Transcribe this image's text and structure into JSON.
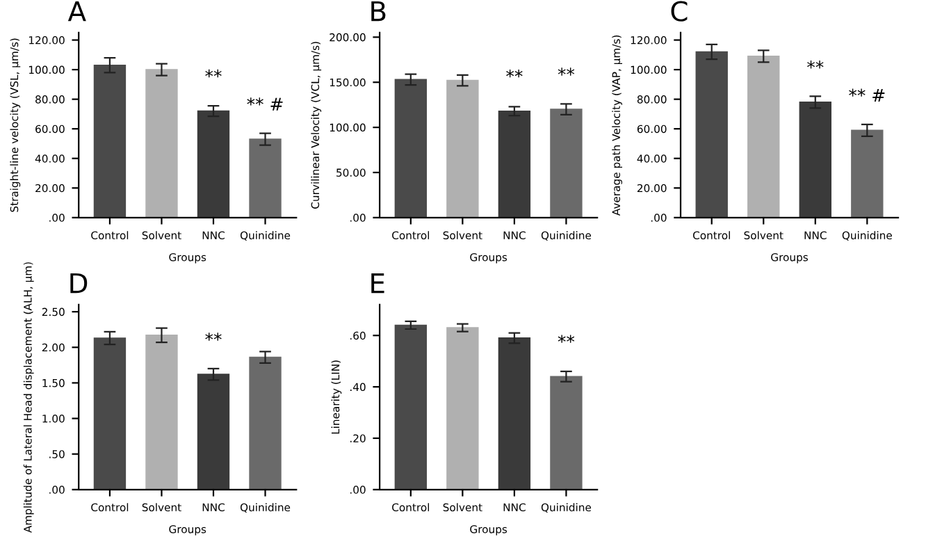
{
  "chart_data": [
    {
      "type": "bar",
      "title": "A",
      "xlabel": "Groups",
      "ylabel": "Straight-line velocity (VSL, µm/s)",
      "categories": [
        "Control",
        "Solvent",
        "NNC",
        "Quinidine"
      ],
      "values": [
        103,
        100,
        72,
        53
      ],
      "errors": [
        5,
        4,
        3.5,
        4
      ],
      "colors": [
        "#4a4a4a",
        "#b0b0b0",
        "#3a3a3a",
        "#6a6a6a"
      ],
      "ylim": [
        0,
        125
      ],
      "yticks": [
        {
          "value": 0,
          "label": ".00"
        },
        {
          "value": 20,
          "label": "20.00"
        },
        {
          "value": 40,
          "label": "40.00"
        },
        {
          "value": 60,
          "label": "60.00"
        },
        {
          "value": 80,
          "label": "80.00"
        },
        {
          "value": 100,
          "label": "100.00"
        },
        {
          "value": 120,
          "label": "120.00"
        }
      ],
      "annotations": [
        {
          "text": "**",
          "x": "NNC",
          "y": 72
        },
        {
          "text": "** #",
          "x": "Quinidine",
          "y": 53
        }
      ]
    },
    {
      "type": "bar",
      "title": "B",
      "xlabel": "Groups",
      "ylabel": "Curvilinear Velocity (VCL, µm/s)",
      "categories": [
        "Control",
        "Solvent",
        "NNC",
        "Quinidine"
      ],
      "values": [
        153,
        152,
        118,
        120
      ],
      "errors": [
        6,
        6,
        5,
        6
      ],
      "colors": [
        "#4a4a4a",
        "#b0b0b0",
        "#3a3a3a",
        "#6a6a6a"
      ],
      "ylim": [
        0,
        205
      ],
      "yticks": [
        {
          "value": 0,
          "label": ".00"
        },
        {
          "value": 50,
          "label": "50.00"
        },
        {
          "value": 100,
          "label": "100.00"
        },
        {
          "value": 150,
          "label": "150.00"
        },
        {
          "value": 200,
          "label": "200.00"
        }
      ],
      "annotations": [
        {
          "text": "**",
          "x": "NNC",
          "y": 118
        },
        {
          "text": "**",
          "x": "Quinidine",
          "y": 120
        }
      ]
    },
    {
      "type": "bar",
      "title": "C",
      "xlabel": "Groups",
      "ylabel": "Average path Velocity (VAP, µm/s)",
      "categories": [
        "Control",
        "Solvent",
        "NNC",
        "Quinidine"
      ],
      "values": [
        112,
        109,
        78,
        59
      ],
      "errors": [
        5,
        4,
        4,
        4
      ],
      "colors": [
        "#4a4a4a",
        "#b0b0b0",
        "#3a3a3a",
        "#6a6a6a"
      ],
      "ylim": [
        0,
        125
      ],
      "yticks": [
        {
          "value": 0,
          "label": ".00"
        },
        {
          "value": 20,
          "label": "20.00"
        },
        {
          "value": 40,
          "label": "40.00"
        },
        {
          "value": 60,
          "label": "60.00"
        },
        {
          "value": 80,
          "label": "80.00"
        },
        {
          "value": 100,
          "label": "100.00"
        },
        {
          "value": 120,
          "label": "120.00"
        }
      ],
      "annotations": [
        {
          "text": "**",
          "x": "NNC",
          "y": 78
        },
        {
          "text": "** #",
          "x": "Quinidine",
          "y": 59
        }
      ]
    },
    {
      "type": "bar",
      "title": "D",
      "xlabel": "Groups",
      "ylabel": "Amplitude of Lateral Head displacement (ALH, µm)",
      "categories": [
        "Control",
        "Solvent",
        "NNC",
        "Quinidine"
      ],
      "values": [
        2.13,
        2.17,
        1.62,
        1.86
      ],
      "errors": [
        0.09,
        0.1,
        0.08,
        0.08
      ],
      "colors": [
        "#4a4a4a",
        "#b0b0b0",
        "#3a3a3a",
        "#6a6a6a"
      ],
      "ylim": [
        0,
        2.6
      ],
      "yticks": [
        {
          "value": 0,
          "label": ".00"
        },
        {
          "value": 0.5,
          "label": ".50"
        },
        {
          "value": 1.0,
          "label": "1.00"
        },
        {
          "value": 1.5,
          "label": "1.50"
        },
        {
          "value": 2.0,
          "label": "2.00"
        },
        {
          "value": 2.5,
          "label": "2.50"
        }
      ],
      "annotations": [
        {
          "text": "**",
          "x": "NNC",
          "y": 1.62
        }
      ]
    },
    {
      "type": "bar",
      "title": "E",
      "xlabel": "Groups",
      "ylabel": "Linearity (LIN)",
      "categories": [
        "Control",
        "Solvent",
        "NNC",
        "Quinidine"
      ],
      "values": [
        0.64,
        0.63,
        0.59,
        0.44
      ],
      "errors": [
        0.015,
        0.015,
        0.02,
        0.02
      ],
      "colors": [
        "#4a4a4a",
        "#b0b0b0",
        "#3a3a3a",
        "#6a6a6a"
      ],
      "ylim": [
        0,
        0.72
      ],
      "yticks": [
        {
          "value": 0,
          "label": ".00"
        },
        {
          "value": 0.2,
          "label": ".20"
        },
        {
          "value": 0.4,
          "label": ".40"
        },
        {
          "value": 0.6,
          "label": ".60"
        }
      ],
      "annotations": [
        {
          "text": "**",
          "x": "Quinidine",
          "y": 0.44
        }
      ]
    }
  ]
}
